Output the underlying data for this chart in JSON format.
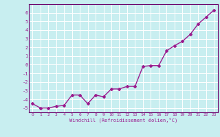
{
  "x": [
    0,
    1,
    2,
    3,
    4,
    5,
    6,
    7,
    8,
    9,
    10,
    11,
    12,
    13,
    14,
    15,
    16,
    17,
    18,
    19,
    20,
    21,
    22,
    23
  ],
  "y": [
    -4.5,
    -5.0,
    -5.0,
    -4.8,
    -4.7,
    -3.5,
    -3.5,
    -4.5,
    -3.5,
    -3.7,
    -2.8,
    -2.8,
    -2.5,
    -2.5,
    -0.2,
    -0.1,
    -0.1,
    1.6,
    2.2,
    2.7,
    3.5,
    4.7,
    5.5,
    6.3
  ],
  "xlim": [
    -0.5,
    23.5
  ],
  "ylim": [
    -5.5,
    7.0
  ],
  "yticks": [
    -5,
    -4,
    -3,
    -2,
    -1,
    0,
    1,
    2,
    3,
    4,
    5,
    6
  ],
  "xticks": [
    0,
    1,
    2,
    3,
    4,
    5,
    6,
    7,
    8,
    9,
    10,
    11,
    12,
    13,
    14,
    15,
    16,
    17,
    18,
    19,
    20,
    21,
    22,
    23
  ],
  "xlabel": "Windchill (Refroidissement éolien,°C)",
  "line_color": "#9b1b8e",
  "marker": "D",
  "marker_size": 2,
  "bg_color": "#c8eef0",
  "grid_color": "#ffffff",
  "axis_color": "#6b006b",
  "tick_label_color": "#9b1b8e",
  "xlabel_color": "#9b1b8e",
  "line_width": 1.0
}
